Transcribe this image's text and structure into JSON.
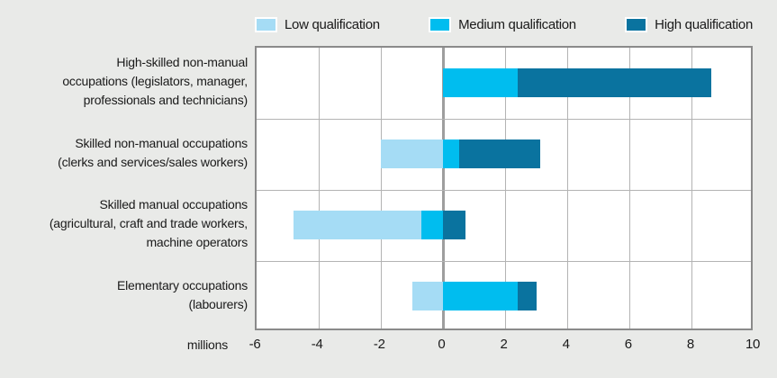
{
  "colors": {
    "background": "#e9eae8",
    "plot_background": "#ffffff",
    "plot_border": "#8a8a8a",
    "gridline": "#b3b3b3",
    "zero_line": "#9e9e9e",
    "text": "#1a1a1a"
  },
  "chart_data": {
    "type": "bar",
    "variant": "horizontal-stacked-diverging",
    "title": "",
    "xlabel": "millions",
    "unit_label": "millions",
    "xlim": [
      -6,
      10
    ],
    "xticks": [
      -6,
      -4,
      -2,
      0,
      2,
      4,
      6,
      8,
      10
    ],
    "grid": true,
    "legend_position": "top",
    "categories": [
      {
        "name": "high-skilled-non-manual",
        "lines": [
          "High-skilled non-manual",
          "occupations (legislators, manager,",
          "professionals and technicians)"
        ]
      },
      {
        "name": "skilled-non-manual",
        "lines": [
          "Skilled non-manual occupations",
          "(clerks and services/sales workers)"
        ]
      },
      {
        "name": "skilled-manual",
        "lines": [
          "Skilled manual occupations",
          "(agricultural, craft and trade workers,",
          "machine operators"
        ]
      },
      {
        "name": "elementary",
        "lines": [
          "Elementary occupations",
          "(labourers)"
        ]
      }
    ],
    "series": [
      {
        "name": "Low qualification",
        "color": "#a5dcf5",
        "values": [
          0.0,
          -2.0,
          -4.1,
          -1.0
        ]
      },
      {
        "name": "Medium qualification",
        "color": "#00bdef",
        "values": [
          2.4,
          0.5,
          -0.7,
          2.4
        ]
      },
      {
        "name": "High qualification",
        "color": "#0a739f",
        "values": [
          6.2,
          2.6,
          0.7,
          0.6
        ]
      }
    ]
  }
}
